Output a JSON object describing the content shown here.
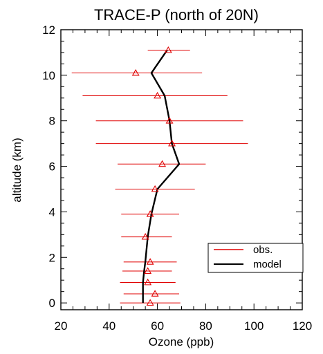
{
  "chart_data": {
    "type": "line",
    "title": "TRACE-P (north of 20N)",
    "xlabel": "Ozone (ppb)",
    "ylabel": "altitude (km)",
    "xlim": [
      20,
      120
    ],
    "ylim": [
      -0.3,
      12
    ],
    "xticks": [
      20,
      40,
      60,
      80,
      100,
      120
    ],
    "yticks": [
      0,
      2,
      4,
      6,
      8,
      10,
      12
    ],
    "grid": false,
    "legend_position": "lower-right",
    "series": [
      {
        "name": "obs.",
        "color": "#e00000",
        "marker": "triangle-open",
        "points": [
          {
            "alt": 0.0,
            "mean": 57.0,
            "low": 44.5,
            "high": 69.5
          },
          {
            "alt": 0.4,
            "mean": 59.0,
            "low": 46.0,
            "high": 69.0
          },
          {
            "alt": 0.9,
            "mean": 56.0,
            "low": 44.5,
            "high": 67.5
          },
          {
            "alt": 1.4,
            "mean": 56.0,
            "low": 45.5,
            "high": 66.0
          },
          {
            "alt": 1.8,
            "mean": 57.0,
            "low": 46.0,
            "high": 68.0
          },
          {
            "alt": 2.9,
            "mean": 55.0,
            "low": 45.0,
            "high": 66.0
          },
          {
            "alt": 3.9,
            "mean": 57.0,
            "low": 45.0,
            "high": 69.0
          },
          {
            "alt": 5.0,
            "mean": 59.0,
            "low": 42.5,
            "high": 75.5
          },
          {
            "alt": 6.1,
            "mean": 62.0,
            "low": 43.5,
            "high": 80.0
          },
          {
            "alt": 7.0,
            "mean": 66.0,
            "low": 34.5,
            "high": 97.5
          },
          {
            "alt": 8.0,
            "mean": 65.0,
            "low": 34.5,
            "high": 95.5
          },
          {
            "alt": 9.1,
            "mean": 60.0,
            "low": 29.0,
            "high": 89.0
          },
          {
            "alt": 10.1,
            "mean": 51.0,
            "low": 24.5,
            "high": 78.5
          },
          {
            "alt": 11.1,
            "mean": 64.5,
            "low": 56.0,
            "high": 73.5
          }
        ]
      },
      {
        "name": "model",
        "color": "#000000",
        "points": [
          {
            "alt": 0.0,
            "ozone": 54.0
          },
          {
            "alt": 0.4,
            "ozone": 54.0
          },
          {
            "alt": 0.9,
            "ozone": 54.0
          },
          {
            "alt": 1.4,
            "ozone": 54.5
          },
          {
            "alt": 1.8,
            "ozone": 55.0
          },
          {
            "alt": 2.9,
            "ozone": 56.0
          },
          {
            "alt": 3.9,
            "ozone": 57.5
          },
          {
            "alt": 5.0,
            "ozone": 60.0
          },
          {
            "alt": 6.1,
            "ozone": 69.0
          },
          {
            "alt": 7.0,
            "ozone": 66.0
          },
          {
            "alt": 8.0,
            "ozone": 65.0
          },
          {
            "alt": 9.1,
            "ozone": 63.0
          },
          {
            "alt": 10.1,
            "ozone": 57.5
          },
          {
            "alt": 11.1,
            "ozone": 64.0
          }
        ]
      }
    ]
  }
}
